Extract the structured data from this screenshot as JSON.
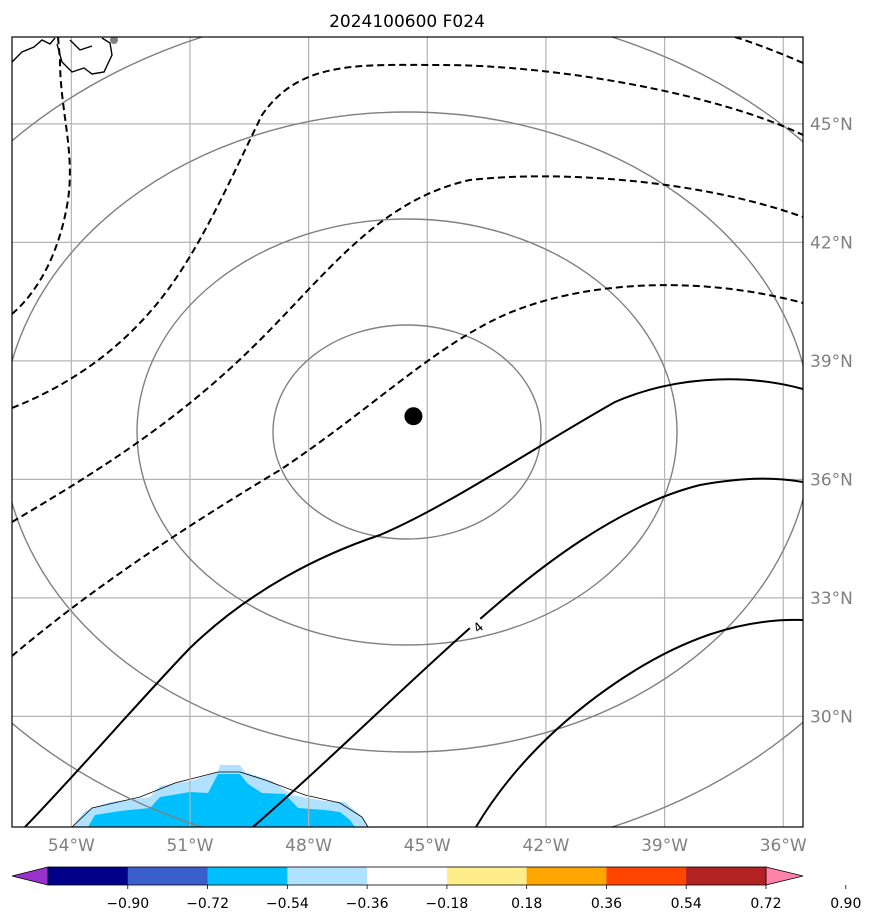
{
  "title": "2024100600 F024",
  "map": {
    "lon_range": [
      -55.5,
      -35.5
    ],
    "lat_range": [
      27.2,
      47.2
    ],
    "lon_ticks": [
      {
        "value": -54,
        "label": "54°W"
      },
      {
        "value": -51,
        "label": "51°W"
      },
      {
        "value": -48,
        "label": "48°W"
      },
      {
        "value": -45,
        "label": "45°W"
      },
      {
        "value": -42,
        "label": "42°W"
      },
      {
        "value": -39,
        "label": "39°W"
      },
      {
        "value": -36,
        "label": "36°W"
      }
    ],
    "lat_ticks": [
      {
        "value": 30,
        "label": "30°N"
      },
      {
        "value": 33,
        "label": "33°N"
      },
      {
        "value": 36,
        "label": "36°N"
      },
      {
        "value": 39,
        "label": "39°N"
      },
      {
        "value": 42,
        "label": "42°N"
      },
      {
        "value": 45,
        "label": "45°N"
      }
    ],
    "storm_center": {
      "lon": -45.35,
      "lat": 37.6
    },
    "contour_label": "4"
  },
  "colorbar": {
    "boundaries": [
      "−0.90",
      "−0.72",
      "−0.54",
      "−0.36",
      "−0.18",
      "0.18",
      "0.36",
      "0.54",
      "0.72",
      "0.90"
    ],
    "colors": [
      "#9932cc",
      "#00008b",
      "#3a5fcd",
      "#00bfff",
      "#b0e2ff",
      "#ffffff",
      "#ffec8b",
      "#ffa500",
      "#ff4500",
      "#b22222",
      "#ff82ab"
    ]
  }
}
